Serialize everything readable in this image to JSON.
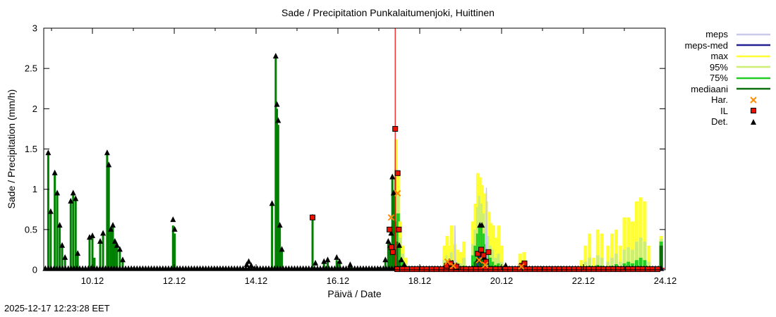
{
  "page": {
    "timestamp": "2025-12-17 12:23:28 EET"
  },
  "chart_data": {
    "type": "bar",
    "title": "Sade / Precipitation  Punkalaitumenjoki, Huittinen",
    "xlabel": "Päivä / Date",
    "ylabel": "Sade / Precipitation (mm/h)",
    "xlim": [
      8.81,
      24.0
    ],
    "ylim": [
      0,
      3
    ],
    "grid": false,
    "legend_position": "right-top-outside",
    "x_ticks": [
      {
        "v": 10,
        "label": "10.12"
      },
      {
        "v": 12,
        "label": "12.12"
      },
      {
        "v": 14,
        "label": "14.12"
      },
      {
        "v": 16,
        "label": "16.12"
      },
      {
        "v": 18,
        "label": "18.12"
      },
      {
        "v": 20,
        "label": "20.12"
      },
      {
        "v": 22,
        "label": "22.12"
      },
      {
        "v": 24,
        "label": "24.12"
      }
    ],
    "y_ticks": [
      {
        "v": 0,
        "label": "0"
      },
      {
        "v": 0.5,
        "label": "0.5"
      },
      {
        "v": 1,
        "label": "1"
      },
      {
        "v": 1.5,
        "label": "1.5"
      },
      {
        "v": 2,
        "label": "2"
      },
      {
        "v": 2.5,
        "label": "2.5"
      },
      {
        "v": 3,
        "label": "3"
      }
    ],
    "current_time_line": {
      "x": 17.4,
      "color": "#ff0000"
    },
    "colors": {
      "observed": "#008000",
      "max": "#ffff33",
      "p95": "#cdee70",
      "p75": "#22cc22",
      "median": "#0a6e0a",
      "meps": "#c9c9ea",
      "meps_med": "#202090",
      "har": "#ff8c00",
      "il": "#ee1100",
      "det": "#000000"
    },
    "legend": [
      {
        "label": "meps",
        "type": "line",
        "color": "#c9c9ea",
        "icon": "meps-line-sample"
      },
      {
        "label": "meps-med",
        "type": "line",
        "color": "#202090",
        "icon": "meps-med-line-sample"
      },
      {
        "label": "max",
        "type": "line",
        "color": "#ffff33",
        "icon": "max-line-sample"
      },
      {
        "label": "95%",
        "type": "line",
        "color": "#cdee70",
        "icon": "p95-line-sample"
      },
      {
        "label": "75%",
        "type": "line",
        "color": "#22cc22",
        "icon": "p75-line-sample"
      },
      {
        "label": "mediaani",
        "type": "line",
        "color": "#0a6e0a",
        "icon": "median-line-sample"
      },
      {
        "label": "Har.",
        "type": "marker-x",
        "color": "#ff8c00",
        "icon": "har-x-marker-icon"
      },
      {
        "label": "IL",
        "type": "marker-square",
        "color": "#ee1100",
        "icon": "il-square-marker-icon"
      },
      {
        "label": "Det.",
        "type": "marker-triangle",
        "color": "#000000",
        "icon": "det-triangle-marker-icon"
      }
    ],
    "series": {
      "observed_bars": [
        [
          8.92,
          1.45
        ],
        [
          8.98,
          0.7
        ],
        [
          9.08,
          1.2
        ],
        [
          9.14,
          0.95
        ],
        [
          9.2,
          0.55
        ],
        [
          9.26,
          0.3
        ],
        [
          9.33,
          0.15
        ],
        [
          9.47,
          0.85
        ],
        [
          9.53,
          0.95
        ],
        [
          9.59,
          0.88
        ],
        [
          9.64,
          0.2
        ],
        [
          9.93,
          0.4
        ],
        [
          10.0,
          0.42
        ],
        [
          10.05,
          0.15
        ],
        [
          10.19,
          0.35
        ],
        [
          10.26,
          0.45
        ],
        [
          10.36,
          1.45
        ],
        [
          10.4,
          1.28
        ],
        [
          10.45,
          0.5
        ],
        [
          10.5,
          0.55
        ],
        [
          10.55,
          0.35
        ],
        [
          10.6,
          0.3
        ],
        [
          10.67,
          0.25
        ],
        [
          10.74,
          0.12
        ],
        [
          11.97,
          0.55
        ],
        [
          12.01,
          0.45
        ],
        [
          14.39,
          0.82
        ],
        [
          14.48,
          2.65
        ],
        [
          14.51,
          2.0
        ],
        [
          14.54,
          1.8
        ],
        [
          14.58,
          0.55
        ],
        [
          14.63,
          0.25
        ],
        [
          15.38,
          0.65
        ],
        [
          15.66,
          0.1
        ],
        [
          15.75,
          0.1
        ],
        [
          15.97,
          0.12
        ],
        [
          16.04,
          0.1
        ],
        [
          16.3,
          0.06
        ],
        [
          17.16,
          0.12
        ],
        [
          17.23,
          0.35
        ],
        [
          17.28,
          0.3
        ],
        [
          17.33,
          1.15
        ],
        [
          17.36,
          0.95
        ]
      ],
      "forecast": [
        [
          17.42,
          1.62,
          1.25,
          1.15,
          0.6
        ],
        [
          17.47,
          1.2,
          0.95,
          0.7,
          0.35
        ],
        [
          17.52,
          0.6,
          0.4,
          0.28,
          0.12
        ],
        [
          17.58,
          0.3,
          0.2,
          0.12,
          0.05
        ],
        [
          17.65,
          0.15,
          0.08,
          0.05,
          0.02
        ],
        [
          18.6,
          0.3,
          0.12,
          0.05,
          0
        ],
        [
          18.67,
          0.42,
          0.18,
          0.07,
          0
        ],
        [
          18.72,
          0.3,
          0.12,
          0.05,
          0
        ],
        [
          18.78,
          0.55,
          0.22,
          0.1,
          0.02
        ],
        [
          18.85,
          0.32,
          0.12,
          0.04,
          0
        ],
        [
          18.92,
          0.25,
          0.1,
          0.03,
          0
        ],
        [
          19.0,
          0.22,
          0.08,
          0.03,
          0
        ],
        [
          19.08,
          0.35,
          0.15,
          0.05,
          0
        ],
        [
          19.3,
          0.6,
          0.32,
          0.18,
          0.05
        ],
        [
          19.36,
          0.82,
          0.5,
          0.3,
          0.1
        ],
        [
          19.42,
          1.2,
          0.78,
          0.45,
          0.15
        ],
        [
          19.47,
          1.15,
          0.92,
          0.55,
          0.22
        ],
        [
          19.52,
          1.05,
          0.82,
          0.55,
          0.25
        ],
        [
          19.58,
          0.95,
          0.7,
          0.45,
          0.18
        ],
        [
          19.63,
          0.85,
          0.55,
          0.32,
          0.12
        ],
        [
          19.68,
          0.72,
          0.42,
          0.22,
          0.08
        ],
        [
          19.74,
          0.58,
          0.3,
          0.15,
          0.05
        ],
        [
          19.8,
          0.55,
          0.25,
          0.1,
          0.02
        ],
        [
          19.86,
          0.4,
          0.15,
          0.06,
          0
        ],
        [
          19.93,
          0.55,
          0.2,
          0.08,
          0
        ],
        [
          20.0,
          0.3,
          0.1,
          0.03,
          0
        ],
        [
          20.45,
          0.2,
          0.06,
          0.02,
          0
        ],
        [
          20.55,
          0.22,
          0.08,
          0.02,
          0
        ],
        [
          21.95,
          0.12,
          0.04,
          0,
          0
        ],
        [
          22.05,
          0.3,
          0.1,
          0.03,
          0
        ],
        [
          22.15,
          0.45,
          0.15,
          0.05,
          0
        ],
        [
          22.25,
          0.15,
          0.05,
          0,
          0
        ],
        [
          22.35,
          0.5,
          0.18,
          0.06,
          0
        ],
        [
          22.45,
          0.45,
          0.15,
          0.05,
          0
        ],
        [
          22.6,
          0.3,
          0.1,
          0.03,
          0
        ],
        [
          22.7,
          0.45,
          0.15,
          0.05,
          0
        ],
        [
          22.8,
          0.5,
          0.2,
          0.07,
          0
        ],
        [
          22.9,
          0.3,
          0.1,
          0.03,
          0
        ],
        [
          23.0,
          0.65,
          0.25,
          0.08,
          0
        ],
        [
          23.1,
          0.65,
          0.28,
          0.1,
          0
        ],
        [
          23.2,
          0.6,
          0.25,
          0.08,
          0
        ],
        [
          23.3,
          0.85,
          0.35,
          0.12,
          0
        ],
        [
          23.4,
          0.9,
          0.4,
          0.15,
          0.02
        ],
        [
          23.5,
          0.85,
          0.35,
          0.12,
          0
        ],
        [
          23.6,
          0.3,
          0.1,
          0.03,
          0
        ],
        [
          23.9,
          0.42,
          0.38,
          0.35,
          0.3
        ]
      ],
      "det_markers": {
        "baseline": {
          "from": 8.85,
          "to": 23.95,
          "step": 0.07,
          "y": 0.012
        },
        "points": [
          [
            8.92,
            1.45
          ],
          [
            8.98,
            0.72
          ],
          [
            9.08,
            1.2
          ],
          [
            9.14,
            0.95
          ],
          [
            9.2,
            0.55
          ],
          [
            9.26,
            0.3
          ],
          [
            9.33,
            0.15
          ],
          [
            9.47,
            0.85
          ],
          [
            9.53,
            0.95
          ],
          [
            9.59,
            0.88
          ],
          [
            9.64,
            0.2
          ],
          [
            9.93,
            0.4
          ],
          [
            10.0,
            0.42
          ],
          [
            10.19,
            0.35
          ],
          [
            10.26,
            0.45
          ],
          [
            10.36,
            1.45
          ],
          [
            10.4,
            1.3
          ],
          [
            10.45,
            0.5
          ],
          [
            10.5,
            0.55
          ],
          [
            10.55,
            0.35
          ],
          [
            10.6,
            0.3
          ],
          [
            10.67,
            0.25
          ],
          [
            10.74,
            0.12
          ],
          [
            11.97,
            0.62
          ],
          [
            12.01,
            0.5
          ],
          [
            13.77,
            0.06
          ],
          [
            13.82,
            0.1
          ],
          [
            13.88,
            0.05
          ],
          [
            14.39,
            0.82
          ],
          [
            14.48,
            2.65
          ],
          [
            14.51,
            2.05
          ],
          [
            14.54,
            1.85
          ],
          [
            14.58,
            0.55
          ],
          [
            14.63,
            0.25
          ],
          [
            15.38,
            0.65
          ],
          [
            15.45,
            0.08
          ],
          [
            15.66,
            0.1
          ],
          [
            15.75,
            0.12
          ],
          [
            15.97,
            0.15
          ],
          [
            16.04,
            0.1
          ],
          [
            16.3,
            0.06
          ],
          [
            17.16,
            0.12
          ],
          [
            17.23,
            0.35
          ],
          [
            17.28,
            0.3
          ],
          [
            17.3,
            0.45
          ],
          [
            17.33,
            1.15
          ],
          [
            17.36,
            0.95
          ],
          [
            17.5,
            0.3
          ],
          [
            17.55,
            0.12
          ],
          [
            17.62,
            0.06
          ],
          [
            18.65,
            0.06
          ],
          [
            18.72,
            0.1
          ],
          [
            18.8,
            0.08
          ],
          [
            18.9,
            0.05
          ],
          [
            19.42,
            0.12
          ],
          [
            19.47,
            0.55
          ],
          [
            19.52,
            0.55
          ],
          [
            19.58,
            0.15
          ],
          [
            19.63,
            0.1
          ],
          [
            20.1,
            0.05
          ],
          [
            20.5,
            0.06
          ]
        ]
      },
      "il_markers": {
        "baseline": {
          "from": 17.45,
          "to": 23.92,
          "step": 0.12,
          "y": 0.008
        },
        "points": [
          [
            15.38,
            0.65
          ],
          [
            17.26,
            0.5
          ],
          [
            17.31,
            0.28
          ],
          [
            17.34,
            0.22
          ],
          [
            17.4,
            1.75
          ],
          [
            17.46,
            1.2
          ],
          [
            17.49,
            0.5
          ],
          [
            18.66,
            0.05
          ],
          [
            18.76,
            0.08
          ],
          [
            18.9,
            0.04
          ],
          [
            19.42,
            0.2
          ],
          [
            19.5,
            0.25
          ],
          [
            19.56,
            0.18
          ],
          [
            19.62,
            0.1
          ],
          [
            19.68,
            0.22
          ],
          [
            20.5,
            0.05
          ],
          [
            20.56,
            0.08
          ]
        ]
      },
      "har_markers": {
        "points": [
          [
            17.3,
            0.65
          ],
          [
            17.46,
            0.95
          ],
          [
            18.68,
            0.1
          ],
          [
            18.82,
            0.05
          ],
          [
            19.45,
            0.12
          ],
          [
            19.6,
            0.06
          ],
          [
            20.48,
            0.04
          ]
        ]
      },
      "meps_line": {
        "points": [
          [
            17.4,
            0.01
          ],
          [
            18.84,
            0.01
          ],
          [
            18.86,
            0.55
          ],
          [
            18.88,
            0.01
          ],
          [
            19.61,
            0.02
          ],
          [
            19.63,
            1.02
          ],
          [
            19.65,
            0.02
          ],
          [
            23.98,
            0.01
          ]
        ]
      },
      "meps_med_line": {
        "points": [
          [
            17.4,
            0.015
          ],
          [
            19.4,
            0.02
          ],
          [
            19.45,
            0.28
          ],
          [
            19.5,
            0.02
          ],
          [
            23.98,
            0.015
          ]
        ]
      },
      "il_zero_line": {
        "from": 17.4,
        "to": 23.98,
        "y": 0.02
      }
    }
  }
}
